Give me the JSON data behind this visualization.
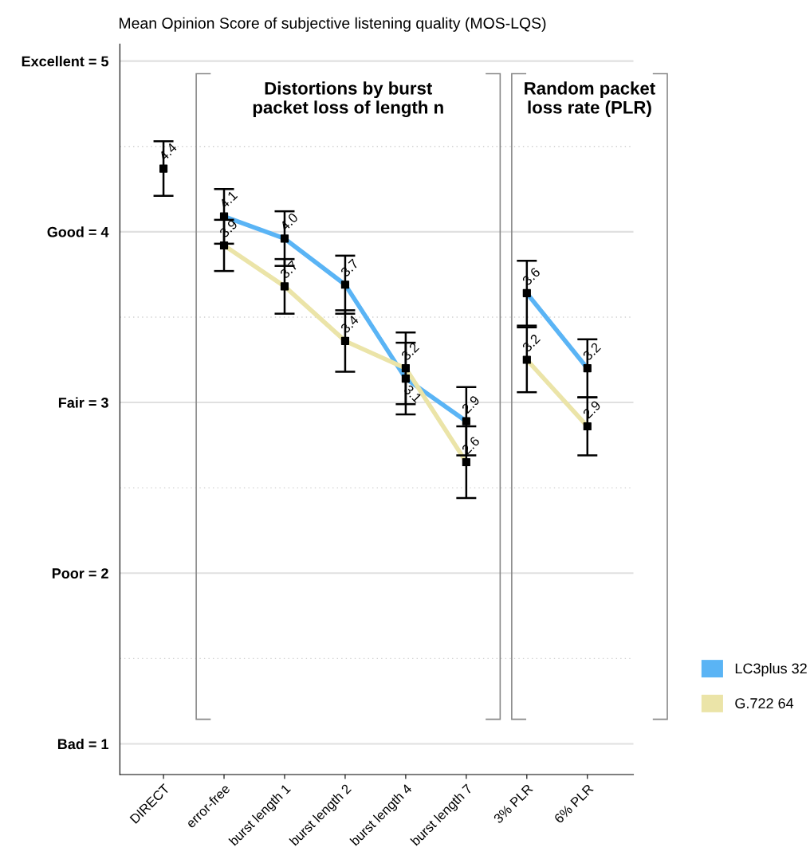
{
  "chart_data": {
    "type": "line",
    "title": "Mean Opinion Score of subjective listening quality (MOS-LQS)",
    "categories": [
      "DIRECT",
      "error-free",
      "burst length 1",
      "burst length 2",
      "burst length 4",
      "burst length 7",
      "3% PLR",
      "6% PLR"
    ],
    "series": [
      {
        "type": "scatter",
        "color": "#000000",
        "values": [
          4.37,
          null,
          null,
          null,
          null,
          null,
          null,
          null
        ],
        "errors": [
          0.16,
          null,
          null,
          null,
          null,
          null,
          null,
          null
        ],
        "value_labels": [
          "4.4",
          null,
          null,
          null,
          null,
          null,
          null,
          null
        ]
      },
      {
        "name": "LC3plus 32",
        "color": "#5ab4f5",
        "values": [
          null,
          4.09,
          3.96,
          3.69,
          3.14,
          2.89,
          null,
          null
        ],
        "errors": [
          null,
          0.16,
          0.16,
          0.17,
          0.21,
          0.2,
          null,
          null
        ],
        "value_labels": [
          null,
          "4.1",
          "4.0",
          "3.7",
          "3.1",
          "2.9",
          null,
          null
        ]
      },
      {
        "name": "G.722 64",
        "color": "#ebe4a8",
        "values": [
          null,
          3.92,
          3.68,
          3.36,
          3.2,
          2.65,
          null,
          null
        ],
        "errors": [
          null,
          0.15,
          0.16,
          0.18,
          0.21,
          0.21,
          null,
          null
        ],
        "value_labels": [
          null,
          "3.9",
          "3.7",
          "3.4",
          "3.2",
          "2.6",
          null,
          null
        ]
      },
      {
        "color": "#5ab4f5",
        "values": [
          null,
          null,
          null,
          null,
          null,
          null,
          3.64,
          3.2
        ],
        "errors": [
          null,
          null,
          null,
          null,
          null,
          null,
          0.19,
          0.17
        ],
        "value_labels": [
          null,
          null,
          null,
          null,
          null,
          null,
          "3.6",
          "3.2"
        ]
      },
      {
        "color": "#ebe4a8",
        "values": [
          null,
          null,
          null,
          null,
          null,
          null,
          3.25,
          2.86
        ],
        "errors": [
          null,
          null,
          null,
          null,
          null,
          null,
          0.19,
          0.17
        ],
        "value_labels": [
          null,
          null,
          null,
          null,
          null,
          null,
          "3.2",
          "2.9"
        ]
      }
    ],
    "ylim": [
      0.82,
      5.1
    ],
    "yticks": [
      {
        "value": 1,
        "label": "Bad = 1"
      },
      {
        "value": 1.5,
        "label": null
      },
      {
        "value": 2,
        "label": "Poor = 2"
      },
      {
        "value": 2.5,
        "label": null
      },
      {
        "value": 3,
        "label": "Fair = 3"
      },
      {
        "value": 3.5,
        "label": null
      },
      {
        "value": 4,
        "label": "Good = 4"
      },
      {
        "value": 4.5,
        "label": null
      },
      {
        "value": 5,
        "label": "Excellent = 5"
      }
    ],
    "grid": "y",
    "marker": "square",
    "legend": "right",
    "annotations": [
      "Distortions by burst\npacket loss of length n",
      "Random packet\nloss rate (PLR)"
    ]
  }
}
